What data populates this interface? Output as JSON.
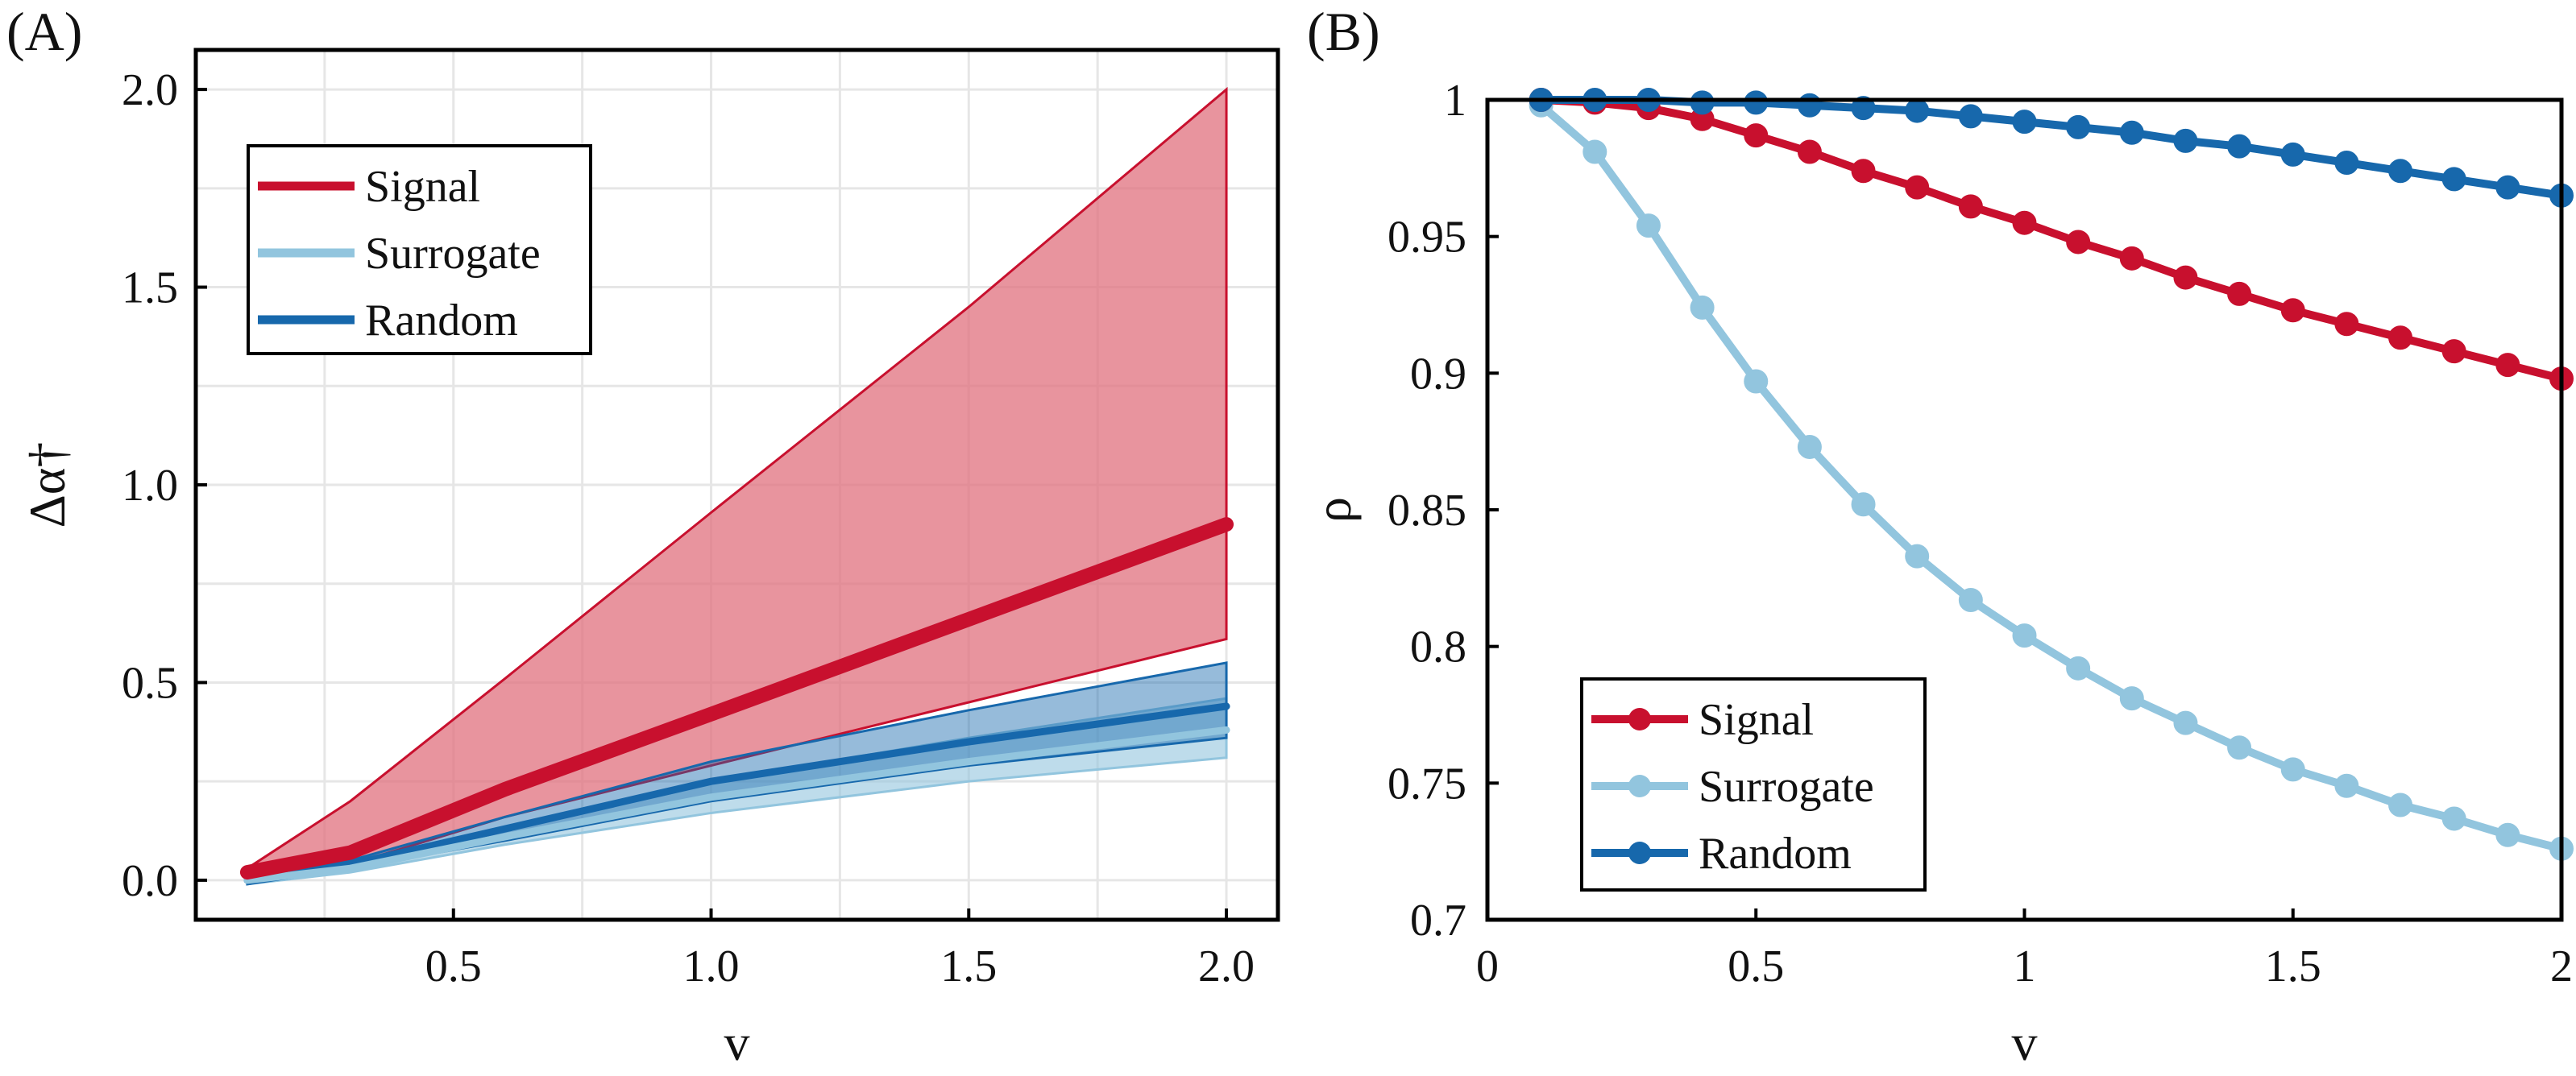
{
  "colors": {
    "signal": "#c8102e",
    "signal_fill": "#e0707e",
    "surrogate": "#92c5de",
    "random": "#1768ac",
    "grid": "#e6e6e6"
  },
  "chart_data": [
    {
      "panel_label": "(A)",
      "type": "area",
      "xlabel": "v",
      "ylabel": "Δα†",
      "xlim": [
        0,
        2.1
      ],
      "ylim": [
        -0.1,
        2.1
      ],
      "xticks": [
        0.5,
        1.0,
        1.5,
        2.0
      ],
      "xtick_labels": [
        "0.5",
        "1.0",
        "1.5",
        "2.0"
      ],
      "yticks": [
        0.0,
        0.5,
        1.0,
        1.5,
        2.0
      ],
      "ytick_labels": [
        "0.0",
        "0.5",
        "1.0",
        "1.5",
        "2.0"
      ],
      "grid": true,
      "legend_position": "top-left",
      "x": [
        0.1,
        0.3,
        0.6,
        1.0,
        1.5,
        2.0
      ],
      "series": [
        {
          "name": "Signal",
          "mean": [
            0.02,
            0.07,
            0.23,
            0.42,
            0.66,
            0.9
          ],
          "upper": [
            0.03,
            0.2,
            0.51,
            0.93,
            1.45,
            2.0
          ],
          "lower": [
            0.01,
            0.04,
            0.16,
            0.29,
            0.45,
            0.61
          ]
        },
        {
          "name": "Surrogate",
          "mean": [
            0.0,
            0.03,
            0.11,
            0.21,
            0.3,
            0.38
          ],
          "upper": [
            0.01,
            0.04,
            0.13,
            0.25,
            0.36,
            0.46
          ],
          "lower": [
            -0.01,
            0.02,
            0.09,
            0.17,
            0.25,
            0.31
          ]
        },
        {
          "name": "Random",
          "mean": [
            0.0,
            0.04,
            0.13,
            0.25,
            0.35,
            0.44
          ],
          "upper": [
            0.01,
            0.05,
            0.16,
            0.3,
            0.43,
            0.55
          ],
          "lower": [
            -0.01,
            0.03,
            0.1,
            0.2,
            0.29,
            0.36
          ]
        }
      ]
    },
    {
      "panel_label": "(B)",
      "type": "line",
      "xlabel": "v",
      "ylabel": "ρ",
      "xlim": [
        0,
        2
      ],
      "ylim": [
        0.7,
        1.0
      ],
      "xticks": [
        0,
        0.5,
        1,
        1.5,
        2
      ],
      "xtick_labels": [
        "0",
        "0.5",
        "1",
        "1.5",
        "2"
      ],
      "yticks": [
        0.7,
        0.75,
        0.8,
        0.85,
        0.9,
        0.95,
        1.0
      ],
      "ytick_labels": [
        "0.7",
        "0.75",
        "0.8",
        "0.85",
        "0.9",
        "0.95",
        "1"
      ],
      "grid": false,
      "legend_position": "bottom-left",
      "x": [
        0.1,
        0.2,
        0.3,
        0.4,
        0.5,
        0.6,
        0.7,
        0.8,
        0.9,
        1.0,
        1.1,
        1.2,
        1.3,
        1.4,
        1.5,
        1.6,
        1.7,
        1.8,
        1.9,
        2.0
      ],
      "series": [
        {
          "name": "Signal",
          "values": [
            1.0,
            0.999,
            0.997,
            0.993,
            0.987,
            0.981,
            0.974,
            0.968,
            0.961,
            0.955,
            0.948,
            0.942,
            0.935,
            0.929,
            0.923,
            0.918,
            0.913,
            0.908,
            0.903,
            0.898
          ]
        },
        {
          "name": "Surrogate",
          "values": [
            0.998,
            0.981,
            0.954,
            0.924,
            0.897,
            0.873,
            0.852,
            0.833,
            0.817,
            0.804,
            0.792,
            0.781,
            0.772,
            0.763,
            0.755,
            0.749,
            0.742,
            0.737,
            0.731,
            0.726
          ]
        },
        {
          "name": "Random",
          "values": [
            1.0,
            1.0,
            1.0,
            0.999,
            0.999,
            0.998,
            0.997,
            0.996,
            0.994,
            0.992,
            0.99,
            0.988,
            0.985,
            0.983,
            0.98,
            0.977,
            0.974,
            0.971,
            0.968,
            0.965
          ]
        }
      ]
    }
  ]
}
